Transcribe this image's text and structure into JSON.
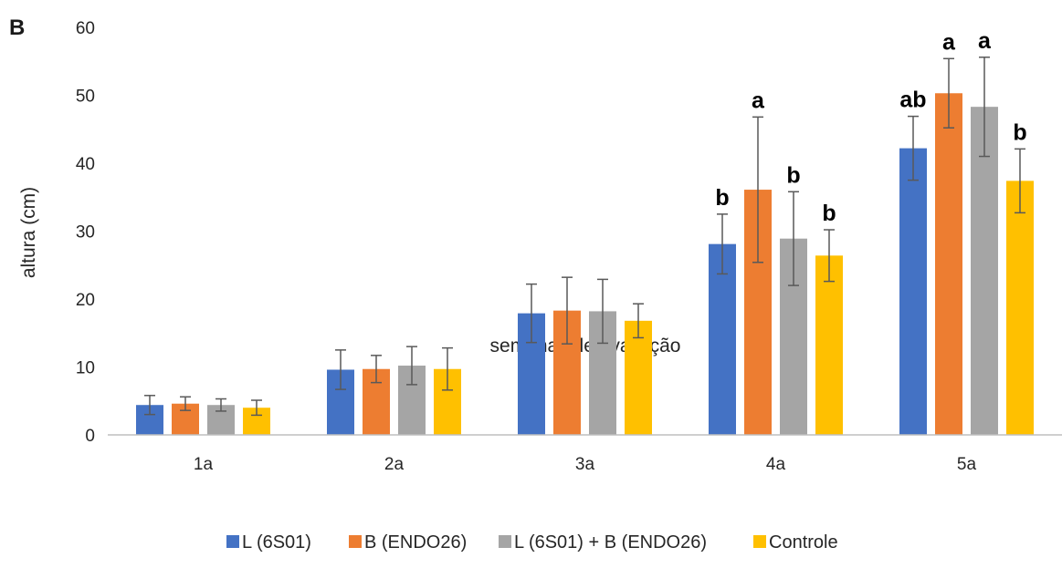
{
  "panel_label": "B",
  "chart_data": {
    "type": "bar",
    "xlabel": "semanas de avaliação",
    "ylabel": "altura (cm)",
    "ylim": [
      0,
      60
    ],
    "yticks": [
      0,
      10,
      20,
      30,
      40,
      50,
      60
    ],
    "grid": false,
    "legend_position": "bottom",
    "categories": [
      "1a",
      "2a",
      "3a",
      "4a",
      "5a"
    ],
    "series": [
      {
        "name": "L (6S01)",
        "color": "#4472C4",
        "values": [
          4.4,
          9.6,
          17.9,
          28.1,
          42.2
        ],
        "errors": [
          1.4,
          2.9,
          4.3,
          4.4,
          4.7
        ],
        "labels": [
          "",
          "",
          "",
          "b",
          "ab"
        ]
      },
      {
        "name": "B (ENDO26)",
        "color": "#ED7D31",
        "values": [
          4.6,
          9.7,
          18.3,
          36.1,
          50.3
        ],
        "errors": [
          1.0,
          2.0,
          4.9,
          10.7,
          5.1
        ],
        "labels": [
          "",
          "",
          "",
          "a",
          "a"
        ]
      },
      {
        "name": "L (6S01) + B (ENDO26)",
        "color": "#A5A5A5",
        "values": [
          4.4,
          10.2,
          18.2,
          28.9,
          48.3
        ],
        "errors": [
          0.9,
          2.8,
          4.7,
          6.9,
          7.3
        ],
        "labels": [
          "",
          "",
          "",
          "b",
          "a"
        ]
      },
      {
        "name": "Controle",
        "color": "#FFC000",
        "values": [
          4.0,
          9.7,
          16.8,
          26.4,
          37.4
        ],
        "errors": [
          1.1,
          3.1,
          2.5,
          3.8,
          4.7
        ],
        "labels": [
          "",
          "",
          "",
          "b",
          "b"
        ]
      }
    ]
  }
}
